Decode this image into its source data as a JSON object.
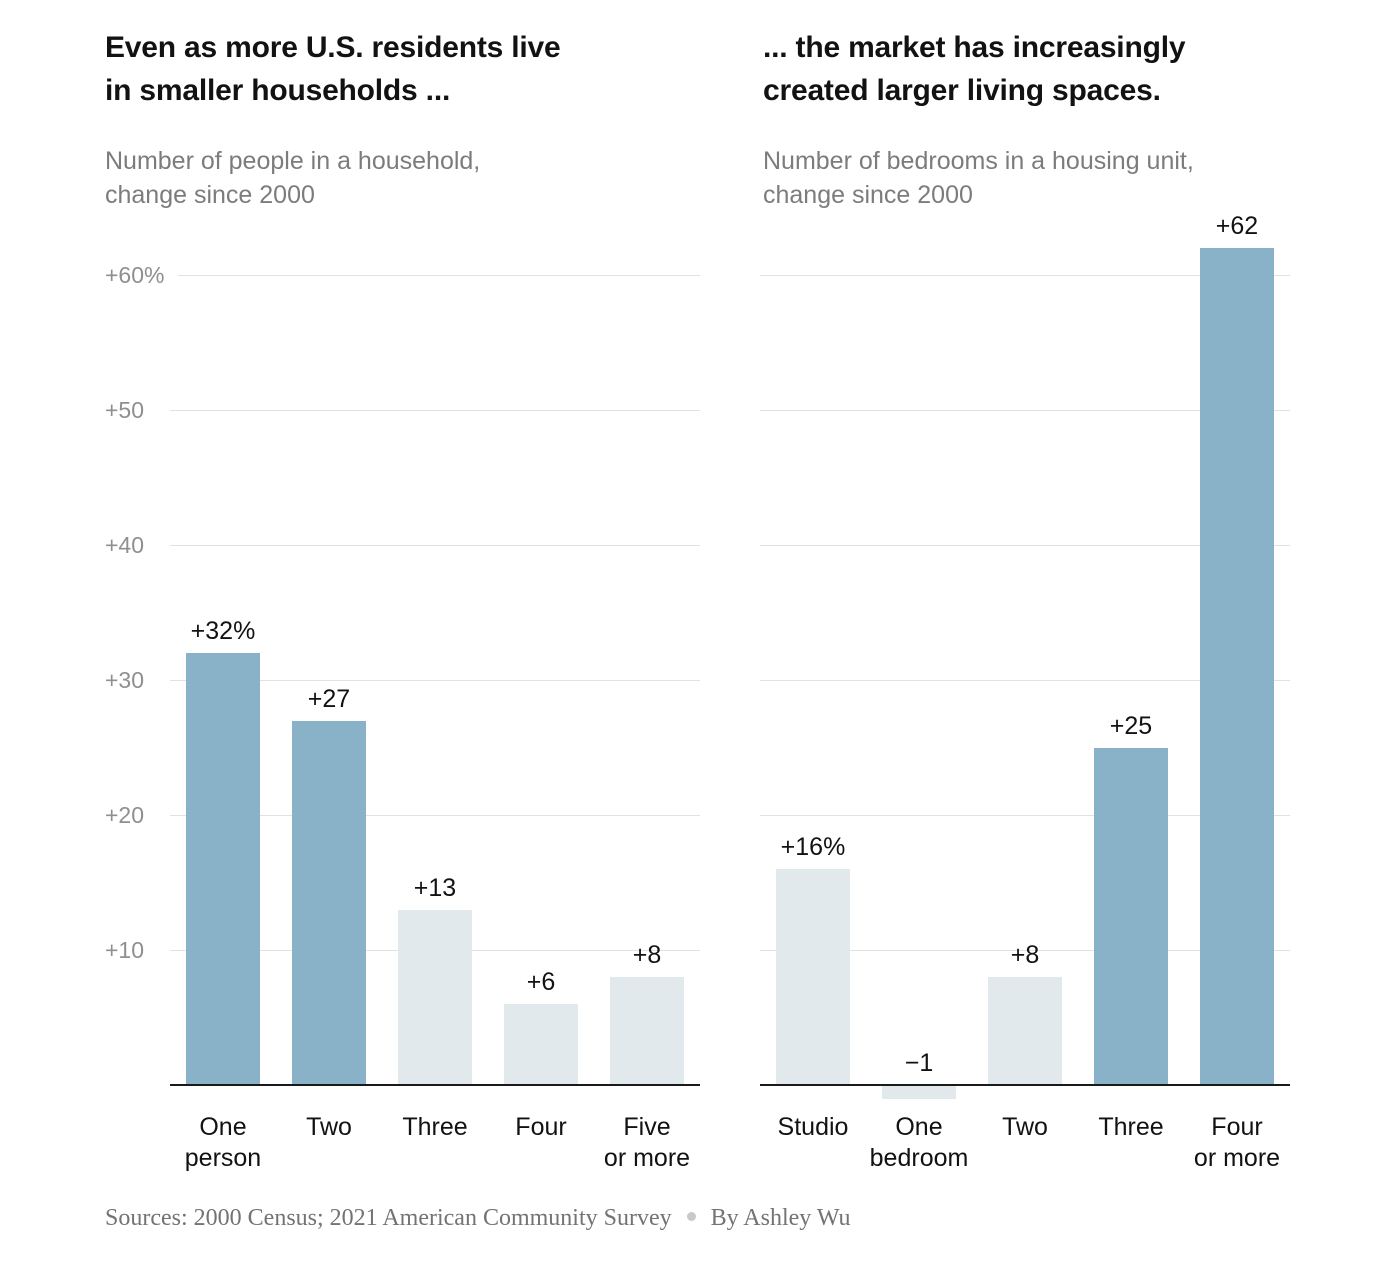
{
  "colors": {
    "emphasis_bar": "#89b1c7",
    "muted_bar": "#e1e9ed",
    "gridline": "#e2e2e2",
    "axis_line": "#1a1a1a",
    "title_text": "#121212",
    "subtitle_text": "#7c7c7c",
    "tick_text": "#8f8f8f",
    "footer_text": "#737373"
  },
  "chart_data": [
    {
      "type": "bar",
      "title": "Even as more U.S. residents live in smaller households ...",
      "title_lines": [
        "Even as more U.S. residents live",
        "in smaller households ..."
      ],
      "subtitle": "Number of people in a household, change since 2000",
      "subtitle_lines": [
        "Number of people in a household,",
        "change since 2000"
      ],
      "categories": [
        "One person",
        "Two",
        "Three",
        "Four",
        "Five or more"
      ],
      "category_lines": [
        [
          "One",
          "person"
        ],
        [
          "Two"
        ],
        [
          "Three"
        ],
        [
          "Four"
        ],
        [
          "Five",
          "or more"
        ]
      ],
      "values": [
        32,
        27,
        13,
        6,
        8
      ],
      "value_labels": [
        "+32%",
        "+27",
        "+13",
        "+6",
        "+8"
      ],
      "emphasized": [
        true,
        true,
        false,
        false,
        false
      ],
      "xlabel": "",
      "ylabel": "",
      "ylim": [
        0,
        60
      ],
      "ytick_values": [
        10,
        20,
        30,
        40,
        50,
        60
      ],
      "ytick_labels": [
        "+10",
        "+20",
        "+30",
        "+40",
        "+50",
        "+60%"
      ],
      "grid": true,
      "legend": "none"
    },
    {
      "type": "bar",
      "title": "... the market has increasingly created larger living spaces.",
      "title_lines": [
        "... the market has increasingly",
        "created larger living spaces."
      ],
      "subtitle": "Number of bedrooms in a housing unit, change since 2000",
      "subtitle_lines": [
        "Number of bedrooms in a housing unit,",
        "change since 2000"
      ],
      "categories": [
        "Studio",
        "One bedroom",
        "Two",
        "Three",
        "Four or more"
      ],
      "category_lines": [
        [
          "Studio"
        ],
        [
          "One",
          "bedroom"
        ],
        [
          "Two"
        ],
        [
          "Three"
        ],
        [
          "Four",
          "or more"
        ]
      ],
      "values": [
        16,
        -1,
        8,
        25,
        62
      ],
      "value_labels": [
        "+16%",
        "−1",
        "+8",
        "+25",
        "+62"
      ],
      "emphasized": [
        false,
        false,
        false,
        true,
        true
      ],
      "xlabel": "",
      "ylabel": "",
      "ylim": [
        -1,
        62
      ],
      "ytick_values": [
        10,
        20,
        30,
        40,
        50,
        60
      ],
      "ytick_labels": [],
      "grid": true,
      "legend": "none"
    }
  ],
  "footer": {
    "sources": "Sources: 2000 Census; 2021 American Community Survey",
    "byline": "By Ashley Wu"
  }
}
